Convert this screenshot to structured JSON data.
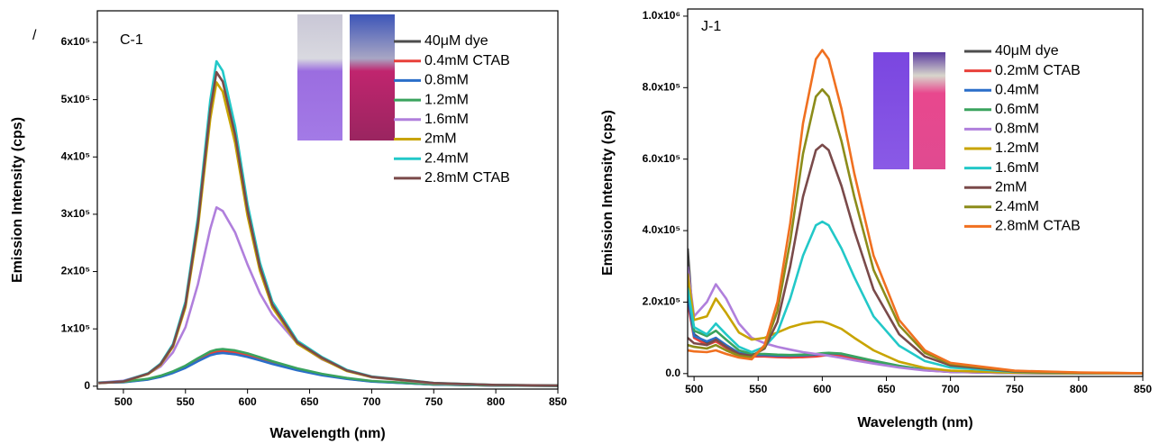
{
  "chart_data": [
    {
      "type": "line",
      "panel_label": "C-1",
      "annotation": "/",
      "xlabel": "Wavelength (nm)",
      "ylabel": "Emission Intensity (cps)",
      "xlim": [
        479,
        850
      ],
      "ylim": [
        -5000,
        655000
      ],
      "xticks": [
        500,
        550,
        600,
        650,
        700,
        750,
        800,
        850
      ],
      "yticks": [
        0,
        {
          "value": 100000,
          "label": "1x10⁵"
        },
        {
          "value": 200000,
          "label": "2x10⁵"
        },
        {
          "value": 300000,
          "label": "3x10⁵"
        },
        {
          "value": 400000,
          "label": "4x10⁵"
        },
        {
          "value": 500000,
          "label": "5x10⁵"
        },
        {
          "value": 600000,
          "label": "6x10⁵"
        }
      ],
      "legend": "upper right",
      "x": [
        480,
        500,
        520,
        530,
        540,
        550,
        560,
        570,
        575,
        580,
        590,
        600,
        610,
        620,
        640,
        660,
        680,
        700,
        750,
        800,
        850
      ],
      "series": [
        {
          "name": "40μM dye",
          "color": "#4d4d4d",
          "values": [
            6000,
            7200,
            12000,
            16800,
            24000,
            33000,
            45000,
            55800,
            58800,
            60000,
            57600,
            52800,
            46800,
            40200,
            28800,
            19800,
            13200,
            8400,
            3000,
            1200,
            600
          ]
        },
        {
          "name": "0.4mM CTAB",
          "color": "#e8403a",
          "values": [
            6200,
            7400,
            12400,
            17400,
            24800,
            34100,
            46500,
            57700,
            60800,
            62000,
            59500,
            54600,
            48400,
            41500,
            29800,
            20500,
            13600,
            8700,
            3100,
            1200,
            600
          ]
        },
        {
          "name": "0.8mM",
          "color": "#2a6ec9",
          "values": [
            5800,
            7000,
            11600,
            16200,
            23200,
            31900,
            43500,
            53900,
            56800,
            58000,
            55700,
            51000,
            45200,
            38900,
            27800,
            19100,
            12800,
            8100,
            2900,
            1200,
            600
          ]
        },
        {
          "name": "1.2mM",
          "color": "#3aa35e",
          "values": [
            6500,
            7800,
            13000,
            18200,
            26000,
            35800,
            48800,
            60500,
            63700,
            65000,
            62400,
            57200,
            50700,
            43600,
            31200,
            21500,
            14300,
            9100,
            3300,
            1300,
            700
          ]
        },
        {
          "name": "1.6mM",
          "color": "#b07fdc",
          "values": [
            6200,
            9400,
            21800,
            34300,
            59300,
            103000,
            177800,
            274600,
            312000,
            305800,
            268300,
            212200,
            162200,
            124800,
            74900,
            46800,
            28100,
            15600,
            4700,
            1900,
            900
          ]
        },
        {
          "name": "2mM",
          "color": "#c8a400",
          "values": [
            5300,
            8000,
            21200,
            37100,
            68900,
            137800,
            275600,
            466400,
            530000,
            514100,
            424000,
            296800,
            201400,
            137800,
            74200,
            47700,
            26500,
            15900,
            5300,
            2100,
            1100
          ]
        },
        {
          "name": "2.4mM",
          "color": "#22c8c8",
          "values": [
            5700,
            8500,
            22700,
            39700,
            73700,
            147400,
            294800,
            499000,
            567000,
            550000,
            453600,
            317500,
            215500,
            147400,
            79400,
            51000,
            28400,
            17000,
            5700,
            2300,
            1100
          ]
        },
        {
          "name": "2.8mM CTAB",
          "color": "#7a4a4a",
          "values": [
            5500,
            8200,
            21900,
            38400,
            71200,
            142500,
            285000,
            482200,
            548000,
            531600,
            438400,
            306900,
            208200,
            142500,
            76700,
            49300,
            27400,
            16400,
            5500,
            2200,
            1100
          ]
        }
      ]
    },
    {
      "type": "line",
      "panel_label": "J-1",
      "xlabel": "Wavelength (nm)",
      "ylabel": "Emission Intensity (cps)",
      "xlim": [
        495,
        850
      ],
      "ylim": [
        -8000,
        1020000
      ],
      "xticks": [
        500,
        550,
        600,
        650,
        700,
        750,
        800,
        850
      ],
      "yticks": [
        {
          "value": 0,
          "label": "0.0"
        },
        {
          "value": 200000,
          "label": "2.0x10⁵"
        },
        {
          "value": 400000,
          "label": "4.0x10⁵"
        },
        {
          "value": 600000,
          "label": "6.0x10⁵"
        },
        {
          "value": 800000,
          "label": "8.0x10⁵"
        },
        {
          "value": 1000000,
          "label": "1.0x10⁶"
        }
      ],
      "legend": "upper right",
      "x": [
        495,
        500,
        510,
        517,
        525,
        535,
        545,
        555,
        565,
        575,
        585,
        595,
        600,
        605,
        615,
        625,
        640,
        660,
        680,
        700,
        750,
        800,
        850
      ],
      "series": [
        {
          "name": "40μM dye",
          "color": "#4d4d4d",
          "values": [
            350000,
            110000,
            85000,
            95000,
            75000,
            55000,
            50000,
            50000,
            48000,
            47000,
            48000,
            50000,
            52000,
            54000,
            52000,
            45000,
            33000,
            20000,
            10000,
            5000,
            1500,
            600,
            300
          ]
        },
        {
          "name": "0.2mM CTAB",
          "color": "#e8403a",
          "values": [
            200000,
            100000,
            80000,
            90000,
            72000,
            53000,
            48000,
            48000,
            46000,
            45000,
            46000,
            48000,
            50000,
            52000,
            50000,
            43000,
            32000,
            19000,
            9500,
            4800,
            1400,
            600,
            300
          ]
        },
        {
          "name": "0.4mM",
          "color": "#2a6ec9",
          "values": [
            220000,
            105000,
            90000,
            100000,
            80000,
            58000,
            52000,
            52000,
            50000,
            50000,
            51000,
            53000,
            55000,
            57000,
            55000,
            47000,
            35000,
            21000,
            10500,
            5200,
            1500,
            600,
            300
          ]
        },
        {
          "name": "0.6mM",
          "color": "#3aa35e",
          "values": [
            250000,
            120000,
            105000,
            120000,
            95000,
            65000,
            55000,
            55000,
            53000,
            52000,
            53000,
            55000,
            57000,
            58000,
            56000,
            48000,
            36000,
            22000,
            11000,
            5500,
            1600,
            600,
            300
          ]
        },
        {
          "name": "0.8mM",
          "color": "#b07fdc",
          "values": [
            300000,
            160000,
            200000,
            250000,
            210000,
            140000,
            100000,
            85000,
            75000,
            67000,
            60000,
            55000,
            53000,
            50000,
            44000,
            37000,
            28000,
            17000,
            9000,
            5000,
            1500,
            700,
            300
          ]
        },
        {
          "name": "1.2mM",
          "color": "#c8a400",
          "values": [
            280000,
            150000,
            160000,
            210000,
            170000,
            115000,
            95000,
            100000,
            115000,
            130000,
            140000,
            145000,
            145000,
            140000,
            125000,
            100000,
            65000,
            33000,
            16000,
            8000,
            2500,
            1000,
            500
          ]
        },
        {
          "name": "1.6mM",
          "color": "#22c8c8",
          "values": [
            240000,
            130000,
            110000,
            140000,
            110000,
            75000,
            60000,
            75000,
            115000,
            210000,
            330000,
            415000,
            425000,
            415000,
            350000,
            270000,
            160000,
            78000,
            35000,
            17000,
            5000,
            2000,
            1000
          ]
        },
        {
          "name": "2mM",
          "color": "#7a4a4a",
          "values": [
            100000,
            85000,
            80000,
            95000,
            75000,
            55000,
            50000,
            70000,
            145000,
            300000,
            495000,
            625000,
            640000,
            625000,
            525000,
            400000,
            235000,
            110000,
            48000,
            23000,
            6000,
            2000,
            1000
          ]
        },
        {
          "name": "2.4mM",
          "color": "#8c8c1a",
          "values": [
            80000,
            75000,
            70000,
            80000,
            65000,
            50000,
            45000,
            75000,
            175000,
            370000,
            615000,
            775000,
            795000,
            775000,
            650000,
            495000,
            290000,
            135000,
            58000,
            27000,
            7000,
            2500,
            1000
          ]
        },
        {
          "name": "2.8mM CTAB",
          "color": "#f07020",
          "values": [
            65000,
            62000,
            60000,
            65000,
            55000,
            45000,
            40000,
            80000,
            200000,
            420000,
            700000,
            880000,
            905000,
            880000,
            740000,
            560000,
            330000,
            150000,
            65000,
            30000,
            8000,
            3000,
            1000
          ]
        }
      ]
    }
  ]
}
